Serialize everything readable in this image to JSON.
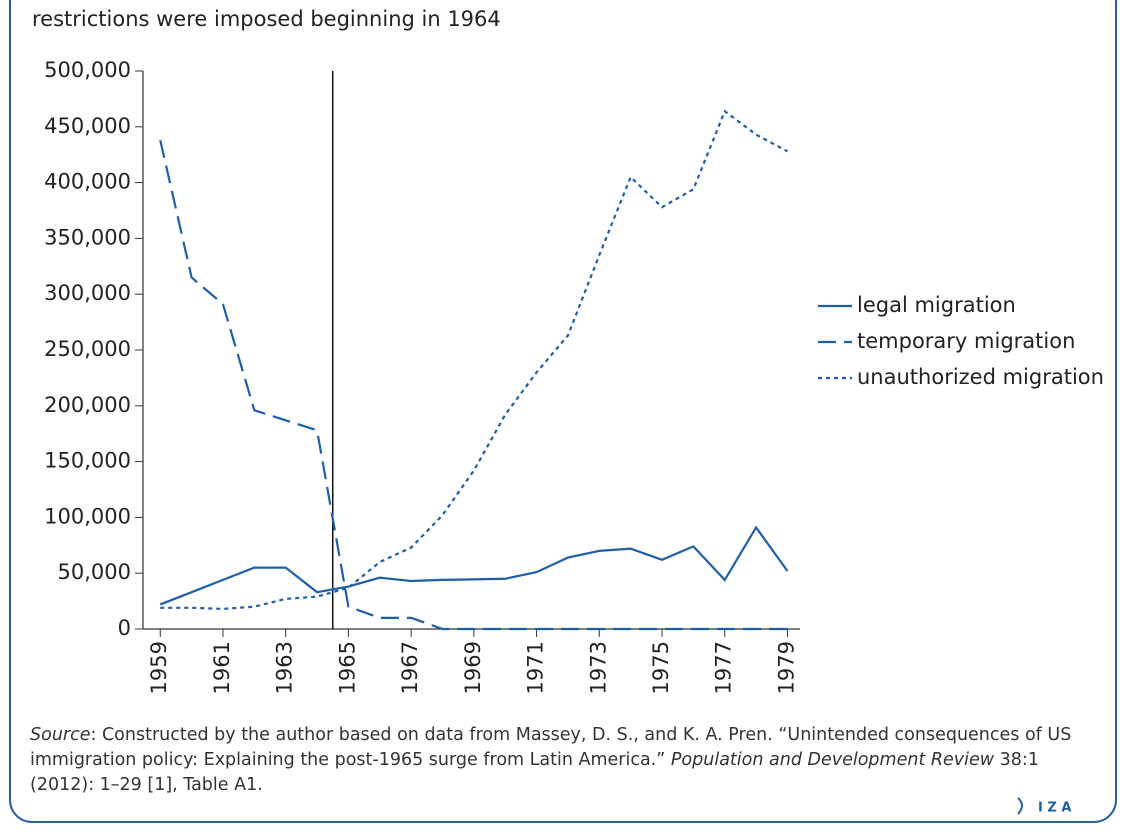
{
  "chart_data": {
    "type": "line",
    "title": "restrictions were imposed beginning in 1964",
    "x": [
      1959,
      1960,
      1961,
      1962,
      1963,
      1964,
      1965,
      1966,
      1967,
      1968,
      1969,
      1970,
      1971,
      1972,
      1973,
      1974,
      1975,
      1976,
      1977,
      1978,
      1979
    ],
    "series": [
      {
        "name": "legal migration",
        "color": "#1f5fa8",
        "style": "solid",
        "values": [
          22000,
          33000,
          44000,
          55000,
          55000,
          33000,
          38000,
          46000,
          43000,
          44000,
          44500,
          45000,
          51000,
          64000,
          70000,
          72000,
          62000,
          74000,
          44000,
          91000,
          52000
        ]
      },
      {
        "name": "temporary migration",
        "color": "#1f5fa8",
        "style": "dashed",
        "values": [
          438000,
          315000,
          291000,
          196000,
          187000,
          178000,
          20000,
          10000,
          10000,
          0,
          0,
          0,
          0,
          0,
          0,
          0,
          0,
          0,
          0,
          0,
          0
        ]
      },
      {
        "name": "unauthorized migration",
        "color": "#1f5fa8",
        "style": "dotted",
        "values": [
          19000,
          19000,
          18000,
          20000,
          27000,
          29000,
          37000,
          60000,
          73000,
          102000,
          142000,
          192000,
          230000,
          263000,
          335000,
          405000,
          378000,
          394000,
          464000,
          443000,
          428000
        ]
      }
    ],
    "xlim": [
      1958.45,
      1979.4
    ],
    "xticks": [
      1959,
      1961,
      1963,
      1965,
      1967,
      1969,
      1971,
      1973,
      1975,
      1977,
      1979
    ],
    "ylim": [
      0,
      500000
    ],
    "yticks": [
      0,
      {
        "value": 50000,
        "label": "50,000"
      },
      {
        "value": 100000,
        "label": "100,000"
      },
      {
        "value": 150000,
        "label": "150,000"
      },
      {
        "value": 200000,
        "label": "200,000"
      },
      {
        "value": 250000,
        "label": "250,000"
      },
      {
        "value": 300000,
        "label": "300,000"
      },
      {
        "value": 350000,
        "label": "350,000"
      },
      {
        "value": 400000,
        "label": "400,000"
      },
      {
        "value": 450000,
        "label": "450,000"
      },
      {
        "value": 500000,
        "label": "500,000"
      }
    ],
    "vline": 1964.5,
    "legend": "right",
    "source": [
      "Source",
      ": Constructed by the author based on data from Massey, D. S., and K. A. Pren. “Unintended consequences of US immigration policy: Explaining the post-1965 surge from Latin America.” ",
      "Population and Development Review",
      " 38:1 (2012): 1–29 [1], Table A1."
    ],
    "logo": "I Z A"
  }
}
